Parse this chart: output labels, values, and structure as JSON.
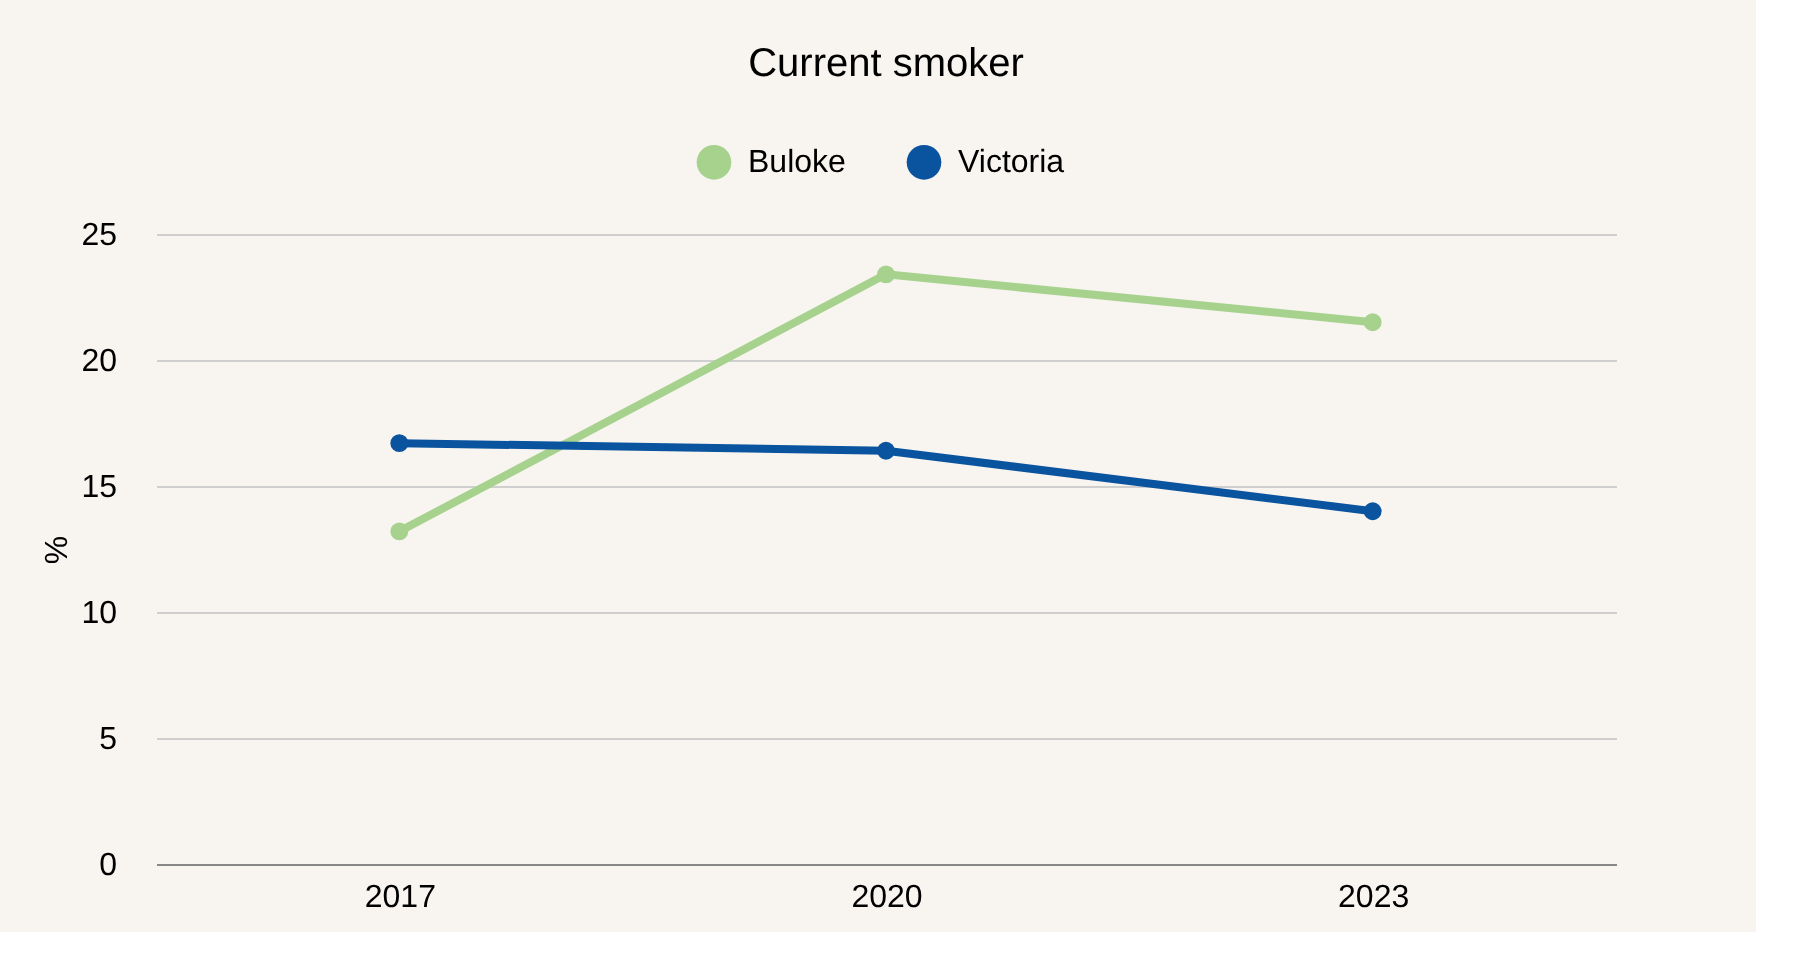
{
  "chart_data": {
    "type": "line",
    "title": "Current smoker",
    "ylabel": "%",
    "categories": [
      "2017",
      "2020",
      "2023"
    ],
    "series": [
      {
        "name": "Buloke",
        "color": "#a6d28e",
        "values": [
          13.2,
          23.4,
          21.5
        ]
      },
      {
        "name": "Victoria",
        "color": "#0a539e",
        "values": [
          16.7,
          16.4,
          14.0
        ]
      }
    ],
    "ylim": [
      0,
      25
    ],
    "yticks": [
      0,
      5,
      10,
      15,
      20,
      25
    ],
    "grid": "y",
    "legend": "top",
    "marker": "circle",
    "line_style": "solid"
  }
}
